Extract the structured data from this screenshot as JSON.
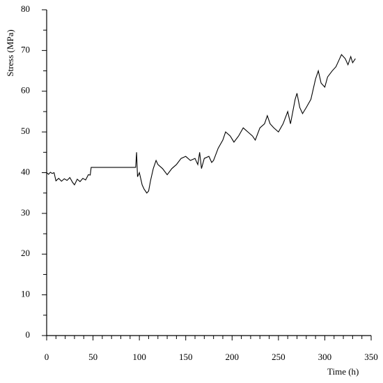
{
  "chart_data": {
    "type": "line",
    "xlabel": "Time (h)",
    "ylabel": "Stress (MPa)",
    "color": "#000000",
    "x": [
      0,
      2,
      4,
      6,
      8,
      10,
      13,
      16,
      19,
      22,
      25,
      28,
      30,
      33,
      36,
      39,
      42,
      45,
      47,
      48,
      96,
      97,
      98,
      100,
      103,
      105,
      108,
      110,
      112,
      115,
      118,
      120,
      125,
      130,
      135,
      140,
      145,
      150,
      155,
      160,
      163,
      165,
      167,
      170,
      175,
      178,
      180,
      185,
      190,
      193,
      198,
      202,
      207,
      212,
      217,
      222,
      225,
      230,
      235,
      238,
      241,
      245,
      250,
      255,
      260,
      263,
      268,
      270,
      273,
      276,
      280,
      285,
      290,
      293,
      296,
      300,
      303,
      308,
      312,
      316,
      318,
      322,
      325,
      328,
      330,
      333
    ],
    "values": [
      40,
      39.6,
      40.1,
      39.8,
      40,
      38,
      38.6,
      37.9,
      38.5,
      38.1,
      38.8,
      37.6,
      37,
      38.4,
      37.8,
      38.6,
      38.2,
      39.5,
      39.4,
      41.3,
      41.3,
      45,
      39,
      40,
      37,
      36,
      35,
      35.5,
      38,
      41,
      43,
      42,
      41,
      39.5,
      41,
      42,
      43.5,
      44,
      43,
      43.5,
      42,
      45,
      41,
      43.5,
      44,
      42.5,
      43,
      46,
      48,
      50,
      49,
      47.5,
      49,
      51,
      50,
      49,
      48,
      51,
      52,
      54,
      52,
      51,
      50,
      52,
      55,
      52,
      58,
      59.5,
      56,
      54.5,
      56,
      58,
      63,
      65,
      62,
      61,
      63.5,
      65,
      66,
      68,
      69,
      68,
      66.5,
      68.5,
      67,
      68
    ],
    "xlim": [
      0,
      350
    ],
    "xticks": [
      0,
      50,
      100,
      150,
      200,
      250,
      300,
      350
    ],
    "xminorticks": [
      10,
      20,
      30,
      40,
      60,
      70,
      80,
      90,
      110,
      120,
      130,
      140,
      160,
      170,
      180,
      190,
      210,
      220,
      230,
      240,
      260,
      270,
      280,
      290,
      310,
      320,
      330,
      340
    ],
    "ylim": [
      0,
      80
    ],
    "yticks": [
      0,
      10,
      20,
      30,
      40,
      50,
      60,
      70,
      80
    ],
    "yminorticks": [
      5,
      15,
      25,
      35,
      45,
      55,
      65,
      75
    ]
  }
}
